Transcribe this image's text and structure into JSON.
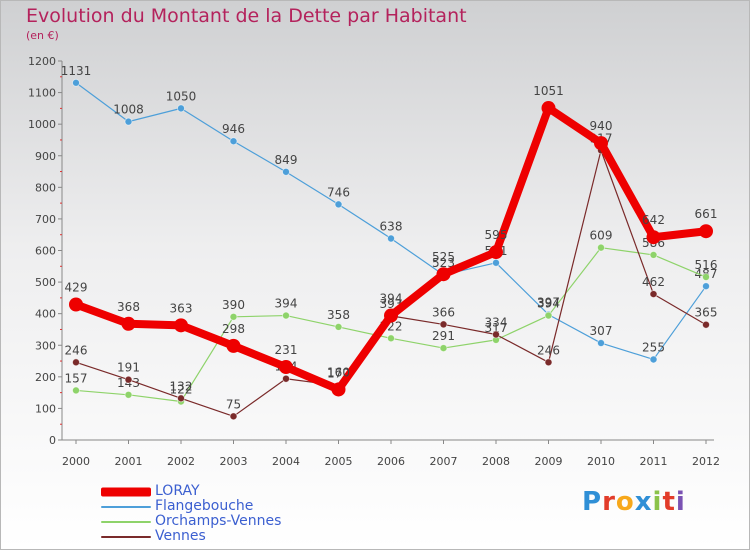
{
  "title": "Evolution du Montant de la Dette par Habitant",
  "subtitle": "(en €)",
  "logo": {
    "text": "Proxiti",
    "colors": [
      "#2f8fd6",
      "#e23c2a",
      "#f7a81b",
      "#2f8fd6",
      "#8bc34a",
      "#e23c2a",
      "#7a52b3"
    ]
  },
  "chart_data": {
    "type": "line",
    "categories": [
      "2000",
      "2001",
      "2002",
      "2003",
      "2004",
      "2005",
      "2006",
      "2007",
      "2008",
      "2009",
      "2010",
      "2011",
      "2012"
    ],
    "ylim": [
      0,
      1200
    ],
    "yticks": [
      0,
      100,
      200,
      300,
      400,
      500,
      600,
      700,
      800,
      900,
      1000,
      1100,
      1200
    ],
    "grid": false,
    "legend_position": "bottom-left",
    "series": [
      {
        "name": "Flangebouche",
        "color": "#4d9fd9",
        "values": [
          1131,
          1008,
          1050,
          946,
          849,
          746,
          638,
          523,
          561,
          397,
          307,
          255,
          487
        ]
      },
      {
        "name": "Orchamps-Vennes",
        "color": "#8ed36a",
        "values": [
          157,
          143,
          122,
          390,
          394,
          358,
          322,
          291,
          317,
          394,
          609,
          586,
          516
        ]
      },
      {
        "name": "Vennes",
        "color": "#7a2a2a",
        "values": [
          246,
          191,
          132,
          75,
          194,
          172,
          393,
          366,
          334,
          246,
          917,
          462,
          365
        ]
      },
      {
        "name": "LORAY",
        "color": "#ee0000",
        "values": [
          429,
          368,
          363,
          298,
          231,
          160,
          394,
          525,
          595,
          1051,
          940,
          642,
          661
        ]
      }
    ],
    "draw_order": [
      "Flangebouche",
      "Orchamps-Vennes",
      "Vennes",
      "LORAY"
    ],
    "legend_order": [
      "LORAY",
      "Flangebouche",
      "Orchamps-Vennes",
      "Vennes"
    ]
  }
}
